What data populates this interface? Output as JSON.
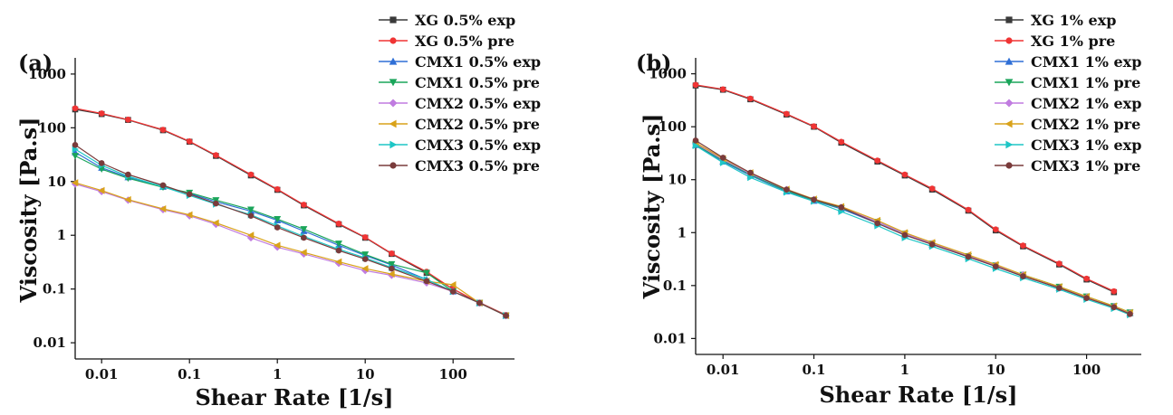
{
  "colors": {
    "XG exp": "#3a3a3a",
    "XG pre": "#f03434",
    "CMX1 exp": "#2f6fd6",
    "CMX1 pre": "#1aa55a",
    "CMX2 exp": "#c07ce0",
    "CMX2 pre": "#d9a21a",
    "CMX3 exp": "#1ec6c6",
    "CMX3 pre": "#7a3b3b"
  },
  "chart_data": [
    {
      "type": "line",
      "panel_label": "(a)",
      "xlabel": "Shear Rate [1/s]",
      "ylabel": "Viscosity [Pa.s]",
      "xscale": "log",
      "yscale": "log",
      "xlim": [
        0.005,
        500
      ],
      "ylim": [
        0.005,
        2000
      ],
      "xticks": [
        0.01,
        0.1,
        1,
        10,
        100
      ],
      "xtick_labels": [
        "0.01",
        "0.1",
        "1",
        "10",
        "100"
      ],
      "yticks": [
        0.01,
        0.1,
        1,
        10,
        100,
        1000
      ],
      "ytick_labels": [
        "0.01",
        "0.1",
        "1",
        "10",
        "100",
        "1000"
      ],
      "legend_position": "top-right",
      "series": [
        {
          "name": "XG 0.5% exp",
          "marker": "square",
          "color_key": "XG exp",
          "x": [
            0.005,
            0.01,
            0.02,
            0.05,
            0.1,
            0.2,
            0.5,
            1,
            2,
            5,
            10,
            20,
            50,
            100,
            200,
            400
          ],
          "y": [
            220,
            180,
            140,
            90,
            55,
            30,
            13,
            7,
            3.6,
            1.6,
            0.9,
            0.45,
            0.2,
            0.1,
            0.055,
            0.032
          ]
        },
        {
          "name": "XG 0.5% pre",
          "marker": "circle",
          "color_key": "XG pre",
          "x": [
            0.005,
            0.01,
            0.02,
            0.05,
            0.1,
            0.2,
            0.5,
            1,
            2,
            5,
            10,
            20,
            50,
            100,
            200,
            400
          ],
          "y": [
            230,
            185,
            142,
            92,
            56,
            31,
            13.5,
            7.2,
            3.7,
            1.65,
            0.92,
            0.46,
            0.21,
            0.1,
            0.056,
            0.033
          ]
        },
        {
          "name": "CMX1 0.5% exp",
          "marker": "triangle-up",
          "color_key": "CMX1 exp",
          "x": [
            0.005,
            0.01,
            0.02,
            0.05,
            0.1,
            0.2,
            0.5,
            1,
            2,
            5,
            10,
            20,
            50,
            100,
            200,
            400
          ],
          "y": [
            35,
            18,
            12,
            8,
            6,
            4.2,
            2.8,
            1.9,
            1.2,
            0.65,
            0.42,
            0.28,
            0.15,
            0.09,
            0.055,
            0.032
          ]
        },
        {
          "name": "CMX1 0.5% pre",
          "marker": "triangle-down",
          "color_key": "CMX1 pre",
          "x": [
            0.005,
            0.01,
            0.02,
            0.05,
            0.1,
            0.2,
            0.5,
            1,
            2,
            5,
            10,
            20,
            50,
            100,
            200,
            400
          ],
          "y": [
            30,
            17,
            11.5,
            7.8,
            6.2,
            4.5,
            3,
            2,
            1.3,
            0.7,
            0.44,
            0.29,
            0.2,
            0.09,
            0.055,
            0.032
          ]
        },
        {
          "name": "CMX2 0.5% exp",
          "marker": "diamond",
          "color_key": "CMX2 exp",
          "x": [
            0.005,
            0.01,
            0.02,
            0.05,
            0.1,
            0.2,
            0.5,
            1,
            2,
            5,
            10,
            20,
            50,
            100,
            200,
            400
          ],
          "y": [
            9,
            6.5,
            4.5,
            3,
            2.3,
            1.6,
            0.9,
            0.6,
            0.45,
            0.3,
            0.22,
            0.18,
            0.13,
            0.09,
            0.055,
            0.032
          ]
        },
        {
          "name": "CMX2 0.5% pre",
          "marker": "triangle-left",
          "color_key": "CMX2 pre",
          "x": [
            0.005,
            0.01,
            0.02,
            0.05,
            0.1,
            0.2,
            0.5,
            1,
            2,
            5,
            10,
            20,
            50,
            100,
            200,
            400
          ],
          "y": [
            9.5,
            6.8,
            4.6,
            3.1,
            2.4,
            1.7,
            1.0,
            0.65,
            0.48,
            0.32,
            0.24,
            0.19,
            0.14,
            0.12,
            0.055,
            0.032
          ]
        },
        {
          "name": "CMX3 0.5% exp",
          "marker": "triangle-right",
          "color_key": "CMX3 exp",
          "x": [
            0.005,
            0.01,
            0.02,
            0.05,
            0.1,
            0.2,
            0.5,
            1,
            2,
            5,
            10,
            20,
            50,
            100,
            200,
            400
          ],
          "y": [
            40,
            20,
            12.5,
            8,
            5.5,
            3.8,
            2.4,
            1.5,
            0.95,
            0.55,
            0.38,
            0.25,
            0.15,
            0.09,
            0.055,
            0.032
          ]
        },
        {
          "name": "CMX3 0.5% pre",
          "marker": "circle",
          "color_key": "CMX3 pre",
          "x": [
            0.005,
            0.01,
            0.02,
            0.05,
            0.1,
            0.2,
            0.5,
            1,
            2,
            5,
            10,
            20,
            50,
            100,
            200,
            400
          ],
          "y": [
            48,
            22,
            13.5,
            8.5,
            5.8,
            3.9,
            2.3,
            1.4,
            0.9,
            0.52,
            0.36,
            0.24,
            0.14,
            0.09,
            0.055,
            0.032
          ]
        }
      ]
    },
    {
      "type": "line",
      "panel_label": "(b)",
      "xlabel": "Shear Rate [1/s]",
      "ylabel": "Viscosity [Pa.s]",
      "xscale": "log",
      "yscale": "log",
      "xlim": [
        0.005,
        400
      ],
      "ylim": [
        0.005,
        2000
      ],
      "xticks": [
        0.01,
        0.1,
        1,
        10,
        100
      ],
      "xtick_labels": [
        "0.01",
        "0.1",
        "1",
        "10",
        "100"
      ],
      "yticks": [
        0.01,
        0.1,
        1,
        10,
        100,
        1000
      ],
      "ytick_labels": [
        "0.01",
        "0.1",
        "1",
        "10",
        "100",
        "1000"
      ],
      "legend_position": "top-right",
      "series": [
        {
          "name": "XG 1% exp",
          "marker": "square",
          "color_key": "XG exp",
          "x": [
            0.005,
            0.01,
            0.02,
            0.05,
            0.1,
            0.2,
            0.5,
            1,
            2,
            5,
            10,
            20,
            50,
            100,
            200
          ],
          "y": [
            600,
            500,
            330,
            170,
            100,
            50,
            22,
            12,
            6.5,
            2.6,
            1.1,
            0.55,
            0.25,
            0.13,
            0.075
          ]
        },
        {
          "name": "XG 1% pre",
          "marker": "circle",
          "color_key": "XG pre",
          "x": [
            0.005,
            0.01,
            0.02,
            0.05,
            0.1,
            0.2,
            0.5,
            1,
            2,
            5,
            10,
            20,
            50,
            100,
            200
          ],
          "y": [
            620,
            510,
            340,
            175,
            102,
            52,
            23,
            12.5,
            6.8,
            2.7,
            1.15,
            0.57,
            0.26,
            0.135,
            0.078
          ]
        },
        {
          "name": "CMX1 1% exp",
          "marker": "triangle-up",
          "color_key": "CMX1 exp",
          "x": [
            0.005,
            0.01,
            0.02,
            0.05,
            0.1,
            0.2,
            0.5,
            1,
            2,
            5,
            10,
            20,
            50,
            100,
            200,
            300
          ],
          "y": [
            45,
            22,
            12,
            6,
            4,
            2.8,
            1.5,
            0.9,
            0.6,
            0.35,
            0.23,
            0.15,
            0.09,
            0.06,
            0.04,
            0.03
          ]
        },
        {
          "name": "CMX1 1% pre",
          "marker": "triangle-down",
          "color_key": "CMX1 pre",
          "x": [
            0.005,
            0.01,
            0.02,
            0.05,
            0.1,
            0.2,
            0.5,
            1,
            2,
            5,
            10,
            20,
            50,
            100,
            200,
            300
          ],
          "y": [
            46,
            23,
            12.5,
            6.2,
            4.1,
            2.9,
            1.6,
            0.95,
            0.62,
            0.36,
            0.24,
            0.16,
            0.095,
            0.062,
            0.041,
            0.031
          ]
        },
        {
          "name": "CMX2 1% exp",
          "marker": "diamond",
          "color_key": "CMX2 exp",
          "x": [
            0.005,
            0.01,
            0.02,
            0.05,
            0.1,
            0.2,
            0.5,
            1,
            2,
            5,
            10,
            20,
            50,
            100,
            200,
            300
          ],
          "y": [
            48,
            24,
            13,
            6.5,
            4.2,
            3,
            1.6,
            0.95,
            0.62,
            0.36,
            0.24,
            0.16,
            0.09,
            0.06,
            0.04,
            0.03
          ]
        },
        {
          "name": "CMX2 1% pre",
          "marker": "triangle-left",
          "color_key": "CMX2 pre",
          "x": [
            0.005,
            0.01,
            0.02,
            0.05,
            0.1,
            0.2,
            0.5,
            1,
            2,
            5,
            10,
            20,
            50,
            100,
            200,
            300
          ],
          "y": [
            50,
            25,
            13.5,
            6.6,
            4.3,
            3.1,
            1.7,
            1.0,
            0.65,
            0.38,
            0.25,
            0.16,
            0.095,
            0.062,
            0.041,
            0.031
          ]
        },
        {
          "name": "CMX3 1% exp",
          "marker": "triangle-right",
          "color_key": "CMX3 exp",
          "x": [
            0.005,
            0.01,
            0.02,
            0.05,
            0.1,
            0.2,
            0.5,
            1,
            2,
            5,
            10,
            20,
            50,
            100,
            200,
            300
          ],
          "y": [
            44,
            21,
            11,
            5.8,
            3.9,
            2.5,
            1.35,
            0.8,
            0.55,
            0.32,
            0.21,
            0.14,
            0.085,
            0.055,
            0.037,
            0.028
          ]
        },
        {
          "name": "CMX3 1% pre",
          "marker": "circle",
          "color_key": "CMX3 pre",
          "x": [
            0.005,
            0.01,
            0.02,
            0.05,
            0.1,
            0.2,
            0.5,
            1,
            2,
            5,
            10,
            20,
            50,
            100,
            200,
            300
          ],
          "y": [
            55,
            26,
            13.5,
            6.5,
            4.2,
            3,
            1.5,
            0.9,
            0.6,
            0.35,
            0.23,
            0.15,
            0.09,
            0.058,
            0.039,
            0.029
          ]
        }
      ]
    }
  ]
}
